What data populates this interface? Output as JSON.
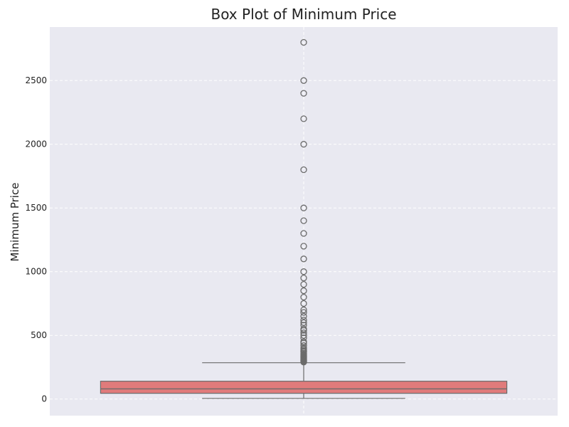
{
  "chart_data": {
    "type": "box",
    "title": "Box Plot of Minimum Price",
    "xlabel": "",
    "ylabel": "Minimum Price",
    "ylim": [
      -130,
      2920
    ],
    "yticks": [
      0,
      500,
      1000,
      1500,
      2000,
      2500
    ],
    "grid": true,
    "box": {
      "min": 5,
      "q1": 45,
      "median": 80,
      "q3": 140,
      "max": 285,
      "color": "#e07b7b"
    },
    "outliers": [
      290,
      295,
      300,
      305,
      310,
      315,
      320,
      325,
      330,
      335,
      340,
      345,
      350,
      360,
      370,
      375,
      380,
      390,
      400,
      420,
      440,
      450,
      480,
      500,
      520,
      540,
      550,
      580,
      600,
      620,
      650,
      680,
      700,
      750,
      800,
      850,
      900,
      950,
      1000,
      1100,
      1200,
      1300,
      1400,
      1500,
      1800,
      2000,
      2200,
      2400,
      2500,
      2800
    ]
  },
  "colors": {
    "plot_background": "#e9e9f1",
    "grid": "#ffffff",
    "whisker": "#6b6b6b"
  }
}
